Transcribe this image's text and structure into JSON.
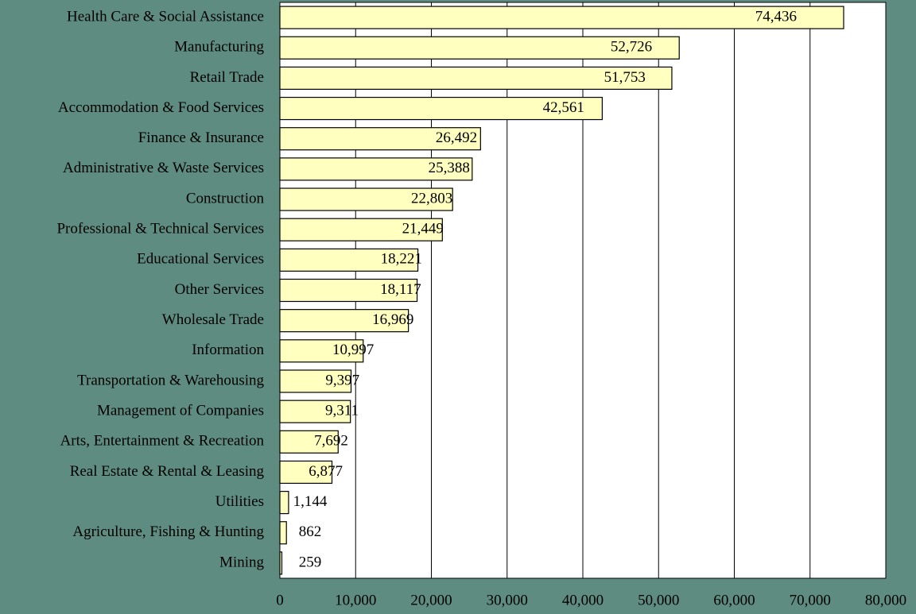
{
  "chart_data": {
    "type": "bar",
    "orientation": "horizontal",
    "categories": [
      "Health Care & Social Assistance",
      "Manufacturing",
      "Retail Trade",
      "Accommodation & Food Services",
      "Finance & Insurance",
      "Administrative & Waste Services",
      "Construction",
      "Professional & Technical Services",
      "Educational Services",
      "Other Services",
      "Wholesale Trade",
      "Information",
      "Transportation & Warehousing",
      "Management of Companies",
      "Arts, Entertainment & Recreation",
      "Real Estate & Rental & Leasing",
      "Utilities",
      "Agriculture, Fishing & Hunting",
      "Mining"
    ],
    "values": [
      74436,
      52726,
      51753,
      42561,
      26492,
      25388,
      22803,
      21449,
      18221,
      18117,
      16969,
      10997,
      9397,
      9311,
      7692,
      6877,
      1144,
      862,
      259
    ],
    "value_labels": [
      "74,436",
      "52,726",
      "51,753",
      "42,561",
      "26,492",
      "25,388",
      "22,803",
      "21,449",
      "18,221",
      "18,117",
      "16,969",
      "10,997",
      "9,397",
      "9,311",
      "7,692",
      "6,877",
      "1,144",
      "862",
      "259"
    ],
    "color": "#ffffc0",
    "xlim": [
      0,
      80000
    ],
    "xticks": [
      0,
      {
        "value": 10000,
        "label": "10,000"
      },
      {
        "value": 20000,
        "label": "20,000"
      },
      {
        "value": 30000,
        "label": "30,000"
      },
      {
        "value": 40000,
        "label": "40,000"
      },
      {
        "value": 50000,
        "label": "50,000"
      },
      {
        "value": 60000,
        "label": "60,000"
      },
      {
        "value": 70000,
        "label": "70,000"
      },
      {
        "value": 80000,
        "label": "80,000"
      }
    ],
    "grid": true
  }
}
